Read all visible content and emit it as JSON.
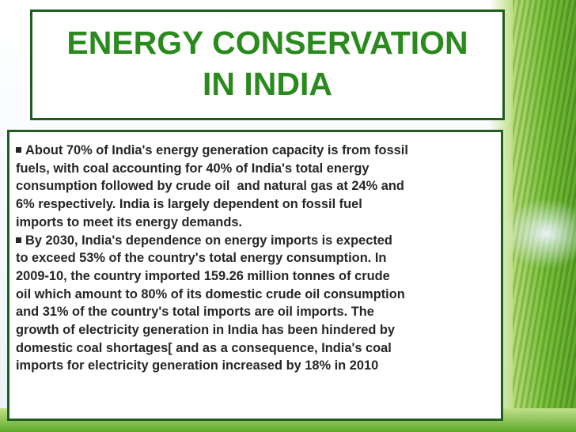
{
  "header": {
    "title_lines": [
      "ENERGY CONSERVATION",
      "IN INDIA"
    ]
  },
  "body": {
    "paragraphs": [
      {
        "lines": [
          "About 70% of India's energy generation capacity is from fossil",
          "fuels, with coal accounting for 40% of India's total energy",
          "consumption followed by crude oil  and natural gas at 24% and",
          "6% respectively. India is largely dependent on fossil fuel",
          "imports to meet its energy demands."
        ]
      },
      {
        "lines": [
          "By 2030, India's dependence on energy imports is expected",
          "to exceed 53% of the country's total energy consumption. In",
          "2009-10, the country imported 159.26 million tonnes of crude",
          "oil which amount to 80% of its domestic crude oil consumption",
          "and 31% of the country's total imports are oil imports. The",
          "growth of electricity generation in India has been hindered by",
          "domestic coal shortages[ and as a consequence, India's coal",
          "imports for electricity generation increased by 18% in 2010"
        ]
      }
    ]
  }
}
